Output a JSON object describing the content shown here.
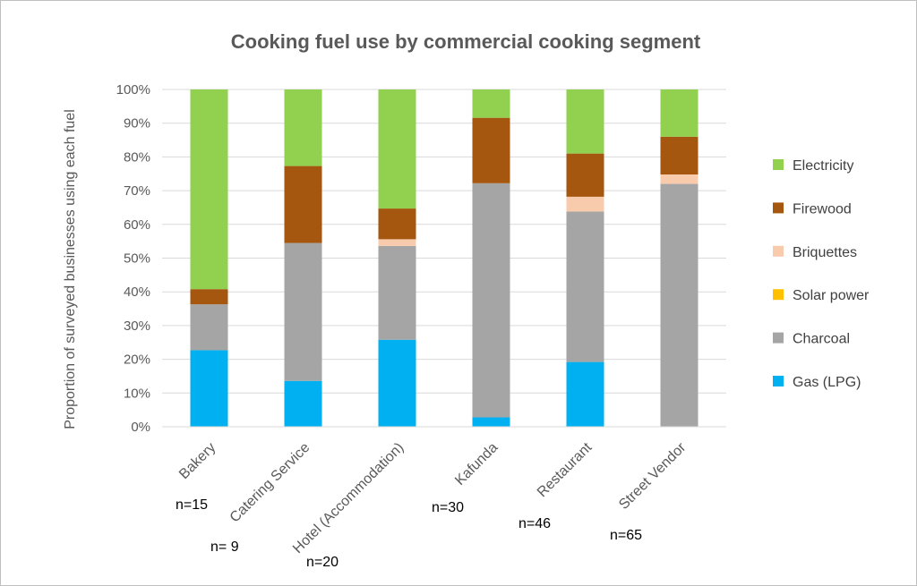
{
  "chart_data": {
    "type": "bar",
    "stacked": true,
    "title": "Cooking fuel use by commercial cooking segment",
    "xlabel": "",
    "ylabel": "Proportion of surveyed businesses using each fuel",
    "ylim": [
      0,
      100
    ],
    "yticks": [
      "0%",
      "10%",
      "20%",
      "30%",
      "40%",
      "50%",
      "60%",
      "70%",
      "80%",
      "90%",
      "100%"
    ],
    "grid": true,
    "legend_position": "right",
    "categories": [
      "Bakery",
      "Catering Service",
      "Hotel (Accommodation)",
      "Kafunda",
      "Restaurant",
      "Street Vendor"
    ],
    "sample_sizes": [
      "n=15",
      "n= 9",
      "n=20",
      "n=30",
      "n=46",
      "n=65"
    ],
    "series": [
      {
        "name": "Gas (LPG)",
        "color": "#00b0f0",
        "values": [
          22.7,
          13.6,
          25.8,
          2.8,
          19.2,
          0
        ]
      },
      {
        "name": "Charcoal",
        "color": "#a5a5a5",
        "values": [
          13.6,
          40.9,
          27.8,
          69.4,
          44.6,
          72.0
        ]
      },
      {
        "name": "Solar power",
        "color": "#ffc000",
        "values": [
          0,
          0,
          0,
          0,
          0,
          0
        ]
      },
      {
        "name": "Briquettes",
        "color": "#f8cbad",
        "values": [
          0,
          0,
          2.0,
          0,
          4.4,
          2.8
        ]
      },
      {
        "name": "Firewood",
        "color": "#a5560f",
        "values": [
          4.5,
          22.8,
          9.1,
          19.4,
          12.8,
          11.2
        ]
      },
      {
        "name": "Electricity",
        "color": "#92d050",
        "values": [
          59.2,
          22.7,
          35.3,
          8.4,
          19.0,
          14.0
        ]
      }
    ]
  }
}
